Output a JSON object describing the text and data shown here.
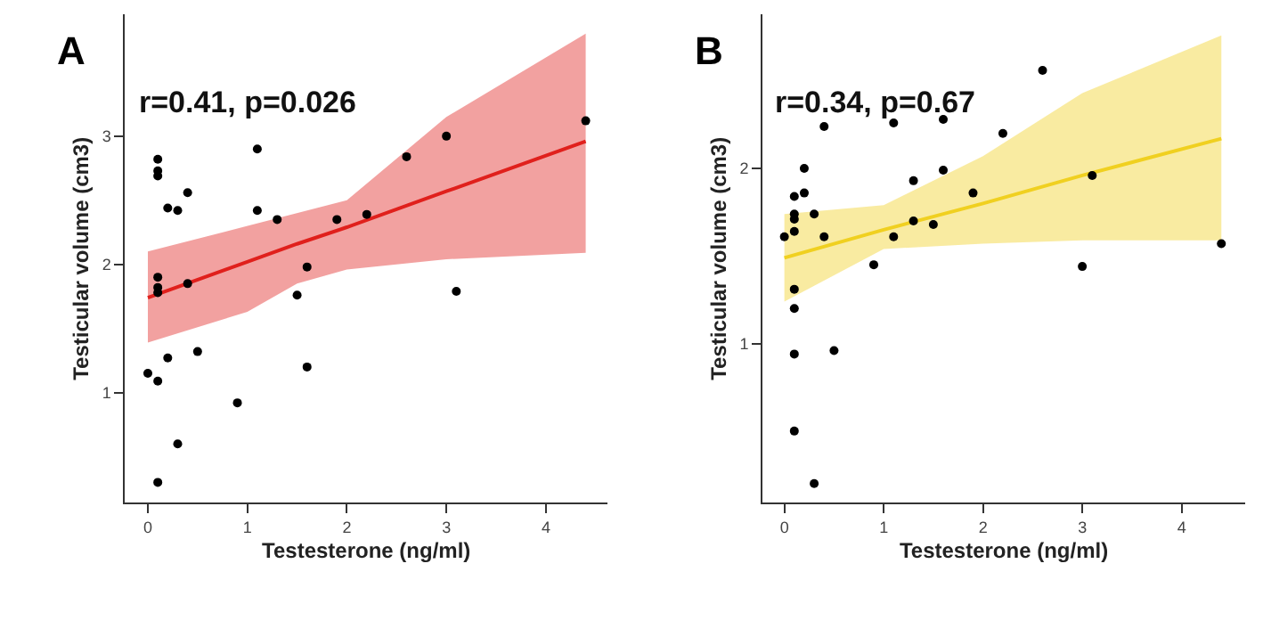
{
  "chart_data": [
    {
      "type": "scatter",
      "title": "A",
      "xlabel": "Testesterone (ng/ml)",
      "ylabel": "Testicular volume (cm3)",
      "annotations": [
        "r=0.41, p=0.026"
      ],
      "xlim": [
        -0.23,
        4.62
      ],
      "ylim": [
        0.14,
        3.95
      ],
      "xticks": [
        0,
        1,
        2,
        3,
        4
      ],
      "yticks": [
        1,
        2,
        3
      ],
      "series": [
        {
          "type": "line",
          "color": "#e0201c",
          "marker": "none",
          "x": [
            0,
            1,
            1.5,
            2,
            3,
            4.4
          ],
          "values": [
            1.74,
            2.02,
            2.16,
            2.29,
            2.57,
            2.96
          ],
          "lower": [
            1.39,
            1.63,
            1.85,
            1.96,
            2.04,
            2.09
          ],
          "upper": [
            2.1,
            2.3,
            2.4,
            2.5,
            3.15,
            3.8
          ]
        },
        {
          "color": "#000000",
          "marker": "circle",
          "x": [
            0,
            0.1,
            0.1,
            0.1,
            0.1,
            0.1,
            0.1,
            0.1,
            0.1,
            0.2,
            0.2,
            0.3,
            0.3,
            0.4,
            0.4,
            0.5,
            0.9,
            1.1,
            1.1,
            1.3,
            1.5,
            1.6,
            1.6,
            1.9,
            2.2,
            2.6,
            3.0,
            3.1,
            4.4
          ],
          "values": [
            1.15,
            1.09,
            0.3,
            2.82,
            2.73,
            2.69,
            1.9,
            1.82,
            1.78,
            2.44,
            1.27,
            2.42,
            0.6,
            2.56,
            1.85,
            1.32,
            0.92,
            2.9,
            2.42,
            2.35,
            1.76,
            1.98,
            1.2,
            2.35,
            2.39,
            2.84,
            3.0,
            1.79,
            3.12
          ]
        }
      ]
    },
    {
      "type": "scatter",
      "title": "B",
      "xlabel": "Testesterone (ng/ml)",
      "ylabel": "Testicular volume (cm3)",
      "annotations": [
        "r=0.34, p=0.67"
      ],
      "xlim": [
        -0.22,
        4.64
      ],
      "ylim": [
        0.09,
        2.88
      ],
      "xticks": [
        0,
        1,
        2,
        3,
        4
      ],
      "yticks": [
        1,
        2
      ],
      "series": [
        {
          "type": "line",
          "color": "#f0d020",
          "marker": "none",
          "x": [
            0,
            1,
            2,
            3,
            4.4
          ],
          "values": [
            1.49,
            1.65,
            1.8,
            1.96,
            2.17
          ],
          "lower": [
            1.24,
            1.54,
            1.57,
            1.59,
            1.59
          ],
          "upper": [
            1.74,
            1.79,
            2.07,
            2.43,
            2.76
          ]
        },
        {
          "color": "#000000",
          "marker": "circle",
          "x": [
            0,
            0.1,
            0.1,
            0.1,
            0.1,
            0.1,
            0.1,
            0.1,
            0.1,
            0.2,
            0.2,
            0.3,
            0.3,
            0.4,
            0.4,
            0.5,
            0.9,
            1.1,
            1.1,
            1.3,
            1.3,
            1.5,
            1.6,
            1.6,
            1.9,
            2.2,
            2.6,
            3.0,
            3.1,
            4.4
          ],
          "values": [
            1.61,
            1.84,
            1.74,
            1.71,
            1.64,
            1.31,
            1.2,
            0.94,
            0.5,
            2.0,
            1.86,
            1.74,
            0.2,
            2.24,
            1.61,
            0.96,
            1.45,
            2.26,
            1.61,
            1.93,
            1.7,
            1.68,
            2.28,
            1.99,
            1.86,
            2.2,
            2.56,
            1.44,
            1.96,
            1.57
          ]
        }
      ]
    }
  ]
}
